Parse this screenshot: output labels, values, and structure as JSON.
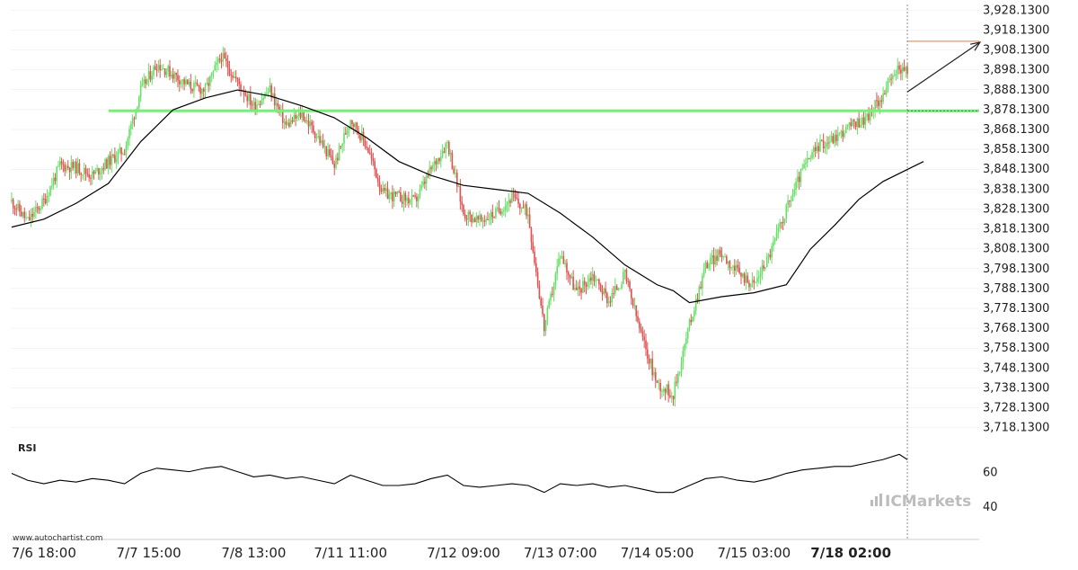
{
  "watermark": {
    "source": "www.autochartist.com",
    "brand": "ICMarkets"
  },
  "colors": {
    "up": "#66e066",
    "down": "#e05252",
    "support": "#7eea7e",
    "target": "#e59866",
    "line": "#000000",
    "grid": "#e8e8e8",
    "text": "#222222"
  },
  "chart_data": [
    {
      "type": "candlestick",
      "title": "",
      "x_tick_labels": [
        "7/6 18:00",
        "7/7 15:00",
        "7/8 13:00",
        "7/11 11:00",
        "7/12 09:00",
        "7/13 07:00",
        "7/14 05:00",
        "7/15 03:00",
        "7/18 02:00"
      ],
      "highlighted_x_label": "7/18 02:00",
      "y_tick_labels": [
        "3,928.1300",
        "3,918.1300",
        "3,908.1300",
        "3,898.1300",
        "3,888.1300",
        "3,878.1300",
        "3,868.1300",
        "3,858.1300",
        "3,848.1300",
        "3,838.1300",
        "3,828.1300",
        "3,818.1300",
        "3,808.1300",
        "3,798.1300",
        "3,788.1300",
        "3,778.1300",
        "3,768.1300",
        "3,758.1300",
        "3,748.1300",
        "3,738.1300",
        "3,728.1300",
        "3,718.1300"
      ],
      "ylim": [
        3713,
        3931
      ],
      "approx_close_path": [
        [
          0,
          3832
        ],
        [
          10,
          3822
        ],
        [
          20,
          3832
        ],
        [
          30,
          3850
        ],
        [
          40,
          3849
        ],
        [
          50,
          3845
        ],
        [
          60,
          3852
        ],
        [
          70,
          3858
        ],
        [
          80,
          3888
        ],
        [
          90,
          3901
        ],
        [
          100,
          3896
        ],
        [
          110,
          3890
        ],
        [
          120,
          3888
        ],
        [
          130,
          3905
        ],
        [
          140,
          3892
        ],
        [
          150,
          3880
        ],
        [
          160,
          3888
        ],
        [
          170,
          3870
        ],
        [
          180,
          3876
        ],
        [
          190,
          3864
        ],
        [
          200,
          3850
        ],
        [
          210,
          3874
        ],
        [
          220,
          3860
        ],
        [
          230,
          3836
        ],
        [
          240,
          3834
        ],
        [
          250,
          3832
        ],
        [
          260,
          3848
        ],
        [
          270,
          3862
        ],
        [
          280,
          3826
        ],
        [
          290,
          3822
        ],
        [
          300,
          3826
        ],
        [
          310,
          3834
        ],
        [
          320,
          3826
        ],
        [
          330,
          3768
        ],
        [
          340,
          3806
        ],
        [
          350,
          3786
        ],
        [
          360,
          3795
        ],
        [
          370,
          3782
        ],
        [
          380,
          3795
        ],
        [
          390,
          3765
        ],
        [
          400,
          3740
        ],
        [
          410,
          3735
        ],
        [
          420,
          3770
        ],
        [
          430,
          3800
        ],
        [
          440,
          3806
        ],
        [
          450,
          3796
        ],
        [
          460,
          3790
        ],
        [
          470,
          3806
        ],
        [
          480,
          3828
        ],
        [
          490,
          3848
        ],
        [
          500,
          3860
        ],
        [
          510,
          3864
        ],
        [
          520,
          3870
        ],
        [
          530,
          3874
        ],
        [
          540,
          3886
        ],
        [
          550,
          3900
        ],
        [
          555,
          3896
        ]
      ],
      "last_bar_index": 555,
      "moving_average": [
        [
          0,
          3819
        ],
        [
          20,
          3823
        ],
        [
          40,
          3831
        ],
        [
          60,
          3841
        ],
        [
          80,
          3862
        ],
        [
          100,
          3878
        ],
        [
          120,
          3884
        ],
        [
          140,
          3888
        ],
        [
          160,
          3885
        ],
        [
          180,
          3880
        ],
        [
          200,
          3874
        ],
        [
          220,
          3864
        ],
        [
          240,
          3852
        ],
        [
          260,
          3845
        ],
        [
          280,
          3840
        ],
        [
          300,
          3838
        ],
        [
          320,
          3836
        ],
        [
          340,
          3826
        ],
        [
          360,
          3814
        ],
        [
          380,
          3800
        ],
        [
          400,
          3790
        ],
        [
          410,
          3787
        ],
        [
          420,
          3781
        ],
        [
          440,
          3784
        ],
        [
          460,
          3786
        ],
        [
          480,
          3790
        ],
        [
          495,
          3808
        ],
        [
          510,
          3820
        ],
        [
          525,
          3833
        ],
        [
          540,
          3842
        ],
        [
          565,
          3852
        ]
      ],
      "support_level": 3877.5,
      "target_level": 3912.5,
      "forecast_arrow": {
        "from": [
          555,
          3887
        ],
        "to": [
          600,
          3912
        ]
      }
    },
    {
      "type": "line",
      "title": "RSI",
      "y_tick_labels": [
        "60",
        "40"
      ],
      "ylim": [
        26,
        78
      ],
      "values": [
        [
          0,
          59
        ],
        [
          10,
          55
        ],
        [
          20,
          53
        ],
        [
          30,
          55
        ],
        [
          40,
          54
        ],
        [
          50,
          56
        ],
        [
          60,
          55
        ],
        [
          70,
          53
        ],
        [
          80,
          59
        ],
        [
          90,
          62
        ],
        [
          100,
          61
        ],
        [
          110,
          60
        ],
        [
          120,
          62
        ],
        [
          130,
          63
        ],
        [
          140,
          60
        ],
        [
          150,
          57
        ],
        [
          160,
          58
        ],
        [
          170,
          56
        ],
        [
          180,
          57
        ],
        [
          190,
          55
        ],
        [
          200,
          53
        ],
        [
          210,
          58
        ],
        [
          220,
          55
        ],
        [
          230,
          52
        ],
        [
          240,
          52
        ],
        [
          250,
          53
        ],
        [
          260,
          56
        ],
        [
          270,
          58
        ],
        [
          280,
          52
        ],
        [
          290,
          51
        ],
        [
          300,
          52
        ],
        [
          310,
          53
        ],
        [
          320,
          52
        ],
        [
          330,
          48
        ],
        [
          340,
          53
        ],
        [
          350,
          52
        ],
        [
          360,
          53
        ],
        [
          370,
          51
        ],
        [
          380,
          52
        ],
        [
          390,
          50
        ],
        [
          400,
          48
        ],
        [
          410,
          48
        ],
        [
          420,
          52
        ],
        [
          430,
          56
        ],
        [
          440,
          57
        ],
        [
          450,
          55
        ],
        [
          460,
          54
        ],
        [
          470,
          56
        ],
        [
          480,
          59
        ],
        [
          490,
          61
        ],
        [
          500,
          62
        ],
        [
          510,
          63
        ],
        [
          520,
          63
        ],
        [
          530,
          65
        ],
        [
          540,
          67
        ],
        [
          550,
          70
        ],
        [
          555,
          67
        ]
      ]
    }
  ]
}
